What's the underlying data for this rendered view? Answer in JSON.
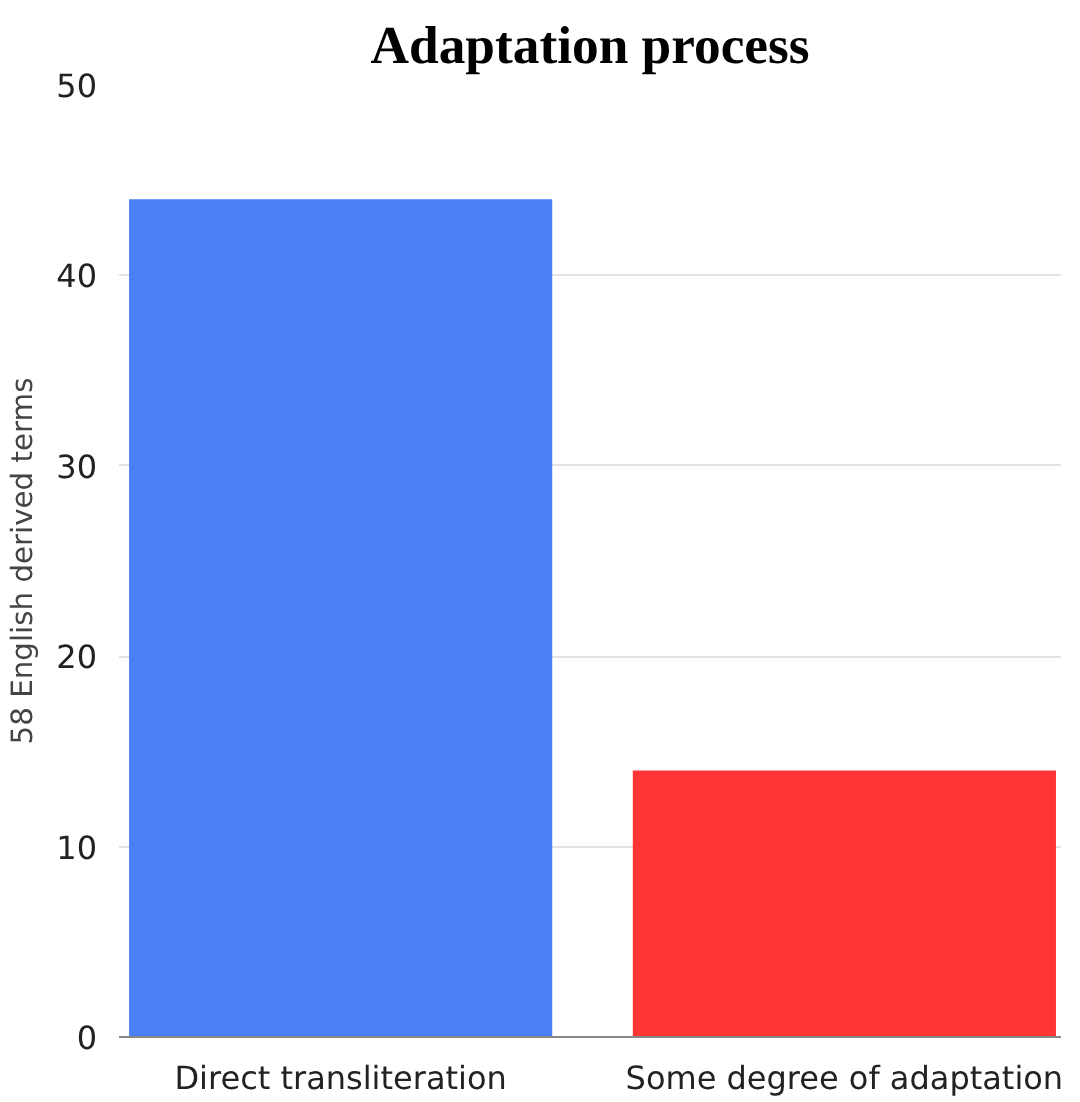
{
  "chart_data": {
    "type": "bar",
    "title": "Adaptation process",
    "ylabel": "58 English derived terms",
    "categories": [
      "Direct transliteration",
      "Some degree of adaptation"
    ],
    "values": [
      44,
      14
    ],
    "colors": [
      "#4a7ff5",
      "#ff3535"
    ],
    "ylim": [
      0,
      50
    ],
    "yticks": [
      0,
      10,
      20,
      30,
      40,
      50
    ],
    "grid": "y"
  }
}
